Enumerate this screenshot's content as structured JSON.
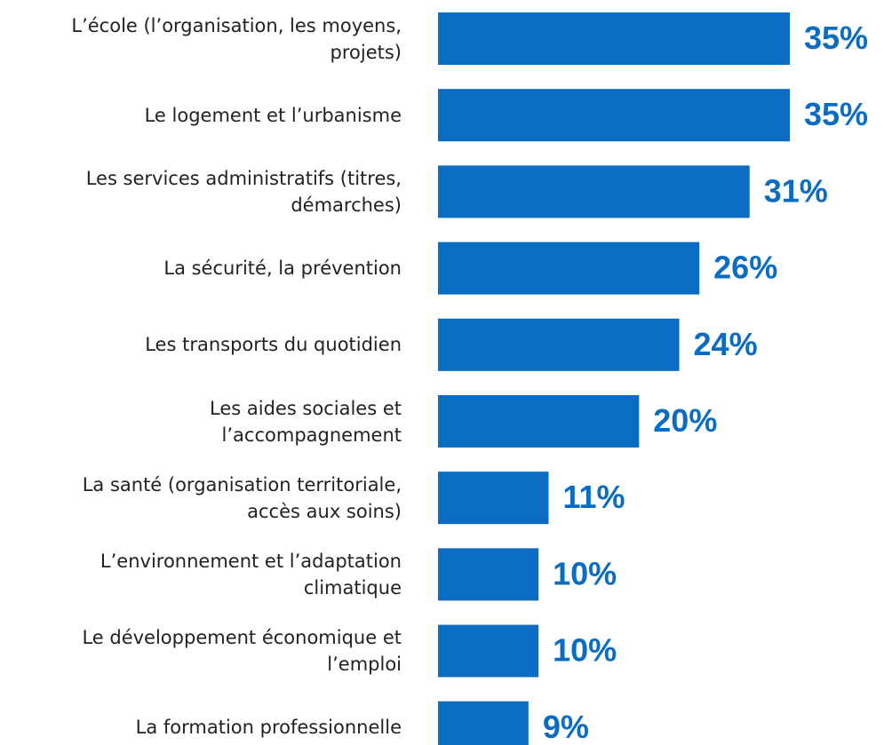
{
  "chart_data": {
    "type": "bar",
    "orientation": "horizontal",
    "color": "#0a6cc2",
    "categories": [
      "L’école (l’organisation, les moyens,\nprojets)",
      "Le logement et l’urbanisme",
      "Les services administratifs (titres,\ndémarches)",
      "La sécurité, la prévention",
      "Les transports du quotidien",
      "Les aides sociales et\nl’accompagnement",
      "La santé (organisation territoriale,\naccès aux soins)",
      "L’environnement et l’adaptation\nclimatique",
      "Le développement économique et\nl’emploi",
      "La formation professionnelle"
    ],
    "values": [
      35,
      35,
      31,
      26,
      24,
      20,
      11,
      10,
      10,
      9
    ],
    "value_labels": [
      "35%",
      "35%",
      "31%",
      "26%",
      "24%",
      "20%",
      "11%",
      "10%",
      "10%",
      "9%"
    ]
  }
}
